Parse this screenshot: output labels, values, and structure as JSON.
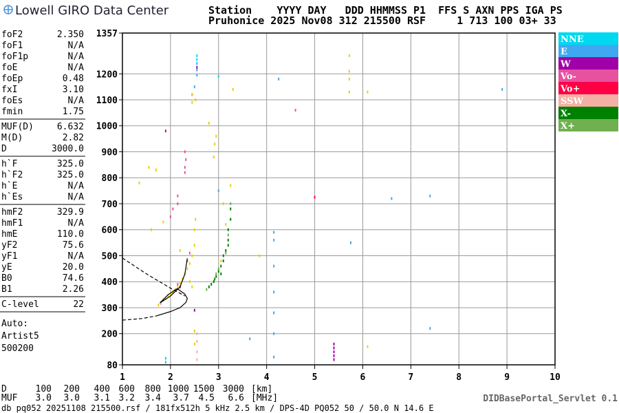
{
  "header": {
    "logo": "Lowell GIRO Data Center",
    "line1": "Station    YYYY DAY   DDD HHMMSS P1  FFS S AXN PPS IGA PS",
    "line2": "Pruhonice 2025 Nov08 312 215500 RSF     1 713 100 03+ 33"
  },
  "parameters": [
    [
      [
        "foF2",
        "2.350"
      ],
      [
        "foF1",
        "N/A"
      ],
      [
        "foF1p",
        "N/A"
      ],
      [
        "foE",
        "N/A"
      ],
      [
        "foEp",
        "0.48"
      ],
      [
        "fxI",
        "3.10"
      ],
      [
        "foEs",
        "N/A"
      ],
      [
        "fmin",
        "1.75"
      ]
    ],
    [
      [
        "MUF(D)",
        "6.632"
      ],
      [
        "M(D)",
        "2.82"
      ],
      [
        "D",
        "3000.0"
      ]
    ],
    [
      [
        "h`F",
        "325.0"
      ],
      [
        "h`F2",
        "325.0"
      ],
      [
        "h`E",
        "N/A"
      ],
      [
        "h`Es",
        "N/A"
      ]
    ],
    [
      [
        "hmF2",
        "329.9"
      ],
      [
        "hmF1",
        "N/A"
      ],
      [
        "hmE",
        "110.0"
      ],
      [
        "yF2",
        "75.6"
      ],
      [
        "yF1",
        "N/A"
      ],
      [
        "yE",
        "20.0"
      ],
      [
        "B0",
        "74.6"
      ],
      [
        "B1",
        "2.26"
      ]
    ],
    [
      [
        "C-level",
        "22"
      ]
    ]
  ],
  "artist": [
    "Auto:",
    "Artist5",
    "500200"
  ],
  "chart_data": {
    "type": "scatter",
    "xlim": [
      1,
      10
    ],
    "ylim": [
      80,
      1357
    ],
    "xticks": [
      1,
      2,
      3,
      4,
      5,
      6,
      7,
      8,
      9,
      10
    ],
    "yticks": [
      80,
      200,
      300,
      400,
      500,
      600,
      700,
      800,
      900,
      1000,
      1100,
      1200,
      1357
    ],
    "grid": true,
    "series": [
      {
        "name": "NNE",
        "color": "#00d8f0",
        "x": [
          1.9,
          1.9,
          2.55,
          2.55,
          3.0
        ],
        "y": [
          90,
          105,
          1270,
          1255,
          1190
        ]
      },
      {
        "name": "E",
        "color": "#40a8f0",
        "x": [
          2.55,
          2.55,
          2.55,
          2.5,
          4.15,
          4.15,
          4.15,
          4.15,
          4.15,
          4.15,
          7.4,
          7.4,
          8.9,
          5.75,
          3.0,
          4.25,
          6.6,
          3.65,
          4.15
        ],
        "y": [
          1240,
          1215,
          1195,
          1150,
          590,
          560,
          460,
          360,
          280,
          200,
          730,
          220,
          1140,
          550,
          750,
          1180,
          720,
          180,
          110
        ]
      },
      {
        "name": "W",
        "color": "#a000a8",
        "x": [
          5.4,
          5.4,
          5.4,
          5.4,
          2.55,
          2.5,
          5.4
        ],
        "y": [
          100,
          115,
          130,
          145,
          1225,
          290,
          160
        ]
      },
      {
        "name": "Vo-",
        "color": "#e850a0",
        "x": [
          2.3,
          2.3,
          2.32,
          2.3,
          2.15,
          2.15,
          2.0,
          2.05,
          4.6,
          2.1,
          2.15,
          2.25,
          2.35,
          2.4
        ],
        "y": [
          820,
          840,
          870,
          900,
          700,
          730,
          650,
          680,
          1060,
          370,
          390,
          410,
          480,
          510
        ]
      },
      {
        "name": "Vo+",
        "color": "#ff0044",
        "x": [
          1.9,
          5.0,
          2.2,
          2.05,
          2.45
        ],
        "y": [
          980,
          725,
          380,
          360,
          1120
        ]
      },
      {
        "name": "SSW",
        "color": "#f4b0a4",
        "x": [
          2.55,
          2.55,
          2.55,
          2.55,
          1.85,
          1.8
        ],
        "y": [
          100,
          130,
          170,
          200,
          330,
          315
        ]
      },
      {
        "name": "X-",
        "color": "#008000",
        "x": [
          2.8,
          2.85,
          2.9,
          2.95,
          3.0,
          3.05,
          3.1,
          3.15,
          3.2,
          3.2,
          3.25,
          3.25,
          3.2,
          3.1,
          2.92,
          3.05
        ],
        "y": [
          380,
          390,
          400,
          420,
          440,
          460,
          480,
          520,
          560,
          600,
          640,
          680,
          540,
          500,
          410,
          430
        ]
      },
      {
        "name": "X+",
        "color": "#70b050",
        "x": [
          2.75,
          2.95,
          3.2,
          3.25,
          3.0,
          3.15
        ],
        "y": [
          370,
          430,
          580,
          700,
          450,
          510
        ]
      },
      {
        "color": "#e8d000",
        "x": [
          1.75,
          1.8,
          1.85,
          1.9,
          1.95,
          2.0,
          2.05,
          2.1,
          2.15,
          2.2,
          2.25,
          2.3,
          2.35,
          2.4,
          2.45,
          2.5,
          2.5,
          2.52,
          2.9,
          2.92,
          2.95,
          2.45,
          2.45,
          5.72,
          5.72,
          5.72,
          5.72,
          2.45,
          2.4,
          1.6,
          1.55,
          1.7,
          1.35,
          3.3,
          3.25,
          2.2,
          1.85,
          6.1,
          3.05,
          2.8,
          3.1,
          3.15,
          3.85,
          2.52,
          2.5,
          2.5,
          6.1
        ],
        "y": [
          310,
          320,
          330,
          335,
          345,
          350,
          360,
          370,
          380,
          395,
          410,
          430,
          450,
          470,
          500,
          540,
          600,
          640,
          880,
          930,
          960,
          1120,
          1090,
          1180,
          1210,
          1130,
          1270,
          380,
          400,
          600,
          840,
          830,
          780,
          1140,
          770,
          520,
          630,
          1130,
          480,
          1010,
          700,
          620,
          500,
          1100,
          210,
          160,
          150
        ]
      }
    ],
    "curves": [
      {
        "color": "#000000",
        "dashed": true,
        "x": [
          1.0,
          1.5,
          2.0,
          2.3
        ],
        "y": [
          491,
          430,
          375,
          345
        ]
      },
      {
        "color": "#000000",
        "dashed": false,
        "x": [
          1.7,
          2.0,
          2.2,
          2.32,
          2.35,
          2.3,
          2.14,
          1.95,
          1.78
        ],
        "y": [
          268,
          285,
          300,
          320,
          335,
          352,
          373,
          350,
          318
        ]
      },
      {
        "color": "#000000",
        "dashed": false,
        "x": [
          1.78,
          2.0,
          2.2,
          2.3,
          2.35
        ],
        "y": [
          318,
          345,
          380,
          430,
          490
        ]
      },
      {
        "color": "#000000",
        "dashed": true,
        "x": [
          1.0,
          1.4,
          1.7
        ],
        "y": [
          252,
          258,
          268
        ]
      }
    ]
  },
  "footer": {
    "d_row": [
      "D",
      "100",
      "200",
      "400",
      "600",
      "800",
      "1000",
      "1500",
      "3000",
      "[km]"
    ],
    "muf_row": [
      "MUF",
      "3.0",
      "3.0",
      "3.1",
      "3.2",
      "3.4",
      "3.7",
      "4.5",
      "6.6",
      "[MHz]"
    ],
    "file": "db pq052 20251108 215500.rsf / 181fx512h 5 kHz 2.5 km / DPS-4D PQ052 50 / 50.0 N 14.6 E",
    "servlet": "DIDBasePortal_Servlet 0.1"
  }
}
